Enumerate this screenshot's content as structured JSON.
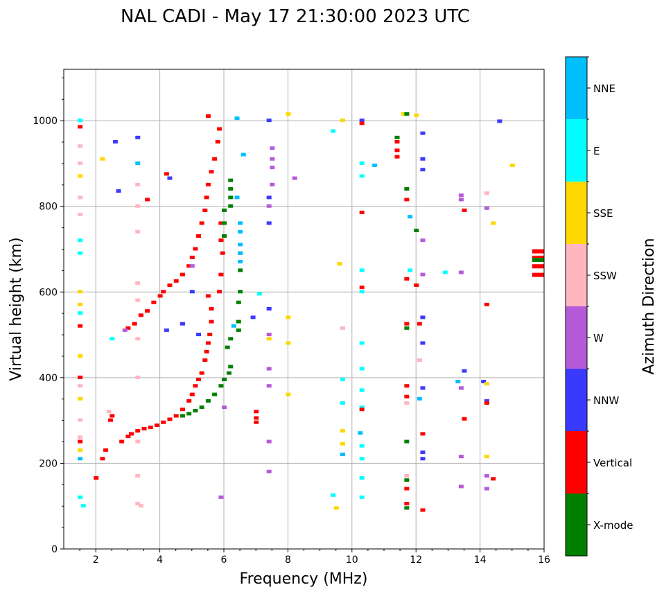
{
  "chart_data": {
    "type": "scatter",
    "title": "NAL CADI - May 17 21:30:00 2023 UTC",
    "xlabel": "Frequency (MHz)",
    "ylabel": "Virtual height (km)",
    "xlim": [
      1,
      16
    ],
    "ylim": [
      0,
      1120
    ],
    "xticks": [
      2,
      4,
      6,
      8,
      10,
      12,
      14,
      16
    ],
    "yticks": [
      0,
      200,
      400,
      600,
      800,
      1000
    ],
    "grid": true,
    "colorbar": {
      "label": "Azimuth Direction",
      "categories": [
        "X-mode",
        "Vertical",
        "NNW",
        "W",
        "SSW",
        "SSE",
        "E",
        "NNE"
      ],
      "colors": [
        "#008000",
        "#ff0000",
        "#3a3aff",
        "#b55ad8",
        "#ffb6c1",
        "#ffd700",
        "#00ffff",
        "#00bfff"
      ]
    },
    "points_format": [
      "frequency_mhz",
      "virtual_height_km",
      "category_index"
    ],
    "points": [
      [
        2.0,
        165,
        1
      ],
      [
        2.2,
        210,
        1
      ],
      [
        2.3,
        230,
        1
      ],
      [
        2.45,
        300,
        1
      ],
      [
        2.5,
        310,
        1
      ],
      [
        2.8,
        250,
        1
      ],
      [
        3.0,
        262,
        1
      ],
      [
        3.1,
        268,
        1
      ],
      [
        3.3,
        275,
        1
      ],
      [
        3.5,
        280,
        1
      ],
      [
        3.7,
        283,
        1
      ],
      [
        3.9,
        288,
        1
      ],
      [
        4.1,
        295,
        1
      ],
      [
        4.3,
        302,
        1
      ],
      [
        4.5,
        310,
        1
      ],
      [
        4.7,
        325,
        1
      ],
      [
        4.9,
        345,
        1
      ],
      [
        5.0,
        360,
        1
      ],
      [
        5.1,
        380,
        1
      ],
      [
        5.2,
        395,
        1
      ],
      [
        5.3,
        410,
        1
      ],
      [
        5.4,
        440,
        1
      ],
      [
        5.45,
        460,
        1
      ],
      [
        5.5,
        480,
        1
      ],
      [
        5.55,
        500,
        1
      ],
      [
        5.6,
        530,
        1
      ],
      [
        5.6,
        560,
        1
      ],
      [
        5.5,
        590,
        1
      ],
      [
        3.0,
        515,
        1
      ],
      [
        3.2,
        525,
        1
      ],
      [
        3.4,
        545,
        1
      ],
      [
        3.6,
        555,
        1
      ],
      [
        3.8,
        575,
        1
      ],
      [
        4.0,
        590,
        1
      ],
      [
        4.1,
        600,
        1
      ],
      [
        4.3,
        615,
        1
      ],
      [
        4.5,
        625,
        1
      ],
      [
        4.7,
        640,
        1
      ],
      [
        4.9,
        660,
        1
      ],
      [
        5.0,
        680,
        1
      ],
      [
        5.1,
        700,
        1
      ],
      [
        5.2,
        730,
        1
      ],
      [
        5.3,
        760,
        1
      ],
      [
        5.4,
        790,
        1
      ],
      [
        5.45,
        820,
        1
      ],
      [
        5.5,
        850,
        1
      ],
      [
        5.6,
        880,
        1
      ],
      [
        5.7,
        910,
        1
      ],
      [
        5.8,
        950,
        1
      ],
      [
        5.85,
        980,
        1
      ],
      [
        5.5,
        1010,
        1
      ],
      [
        5.95,
        690,
        1
      ],
      [
        5.9,
        720,
        1
      ],
      [
        5.9,
        760,
        1
      ],
      [
        5.9,
        640,
        1
      ],
      [
        5.85,
        600,
        1
      ],
      [
        4.2,
        875,
        1
      ],
      [
        3.6,
        815,
        1
      ],
      [
        4.7,
        310,
        0
      ],
      [
        4.9,
        315,
        0
      ],
      [
        5.1,
        322,
        0
      ],
      [
        5.3,
        330,
        0
      ],
      [
        5.5,
        345,
        0
      ],
      [
        5.7,
        360,
        0
      ],
      [
        5.9,
        380,
        0
      ],
      [
        6.0,
        395,
        0
      ],
      [
        6.15,
        410,
        0
      ],
      [
        6.2,
        425,
        0
      ],
      [
        6.1,
        470,
        0
      ],
      [
        6.2,
        490,
        0
      ],
      [
        6.45,
        510,
        0
      ],
      [
        6.45,
        530,
        0
      ],
      [
        6.45,
        575,
        0
      ],
      [
        6.5,
        600,
        0
      ],
      [
        6.2,
        840,
        0
      ],
      [
        6.2,
        860,
        0
      ],
      [
        6.2,
        820,
        0
      ],
      [
        6.0,
        790,
        0
      ],
      [
        6.0,
        760,
        0
      ],
      [
        6.0,
        730,
        0
      ],
      [
        6.2,
        800,
        0
      ],
      [
        6.5,
        650,
        0
      ],
      [
        6.5,
        690,
        0
      ],
      [
        6.4,
        1005,
        7
      ],
      [
        6.5,
        760,
        7
      ],
      [
        6.5,
        740,
        7
      ],
      [
        6.5,
        710,
        7
      ],
      [
        6.5,
        690,
        7
      ],
      [
        6.5,
        670,
        7
      ],
      [
        6.6,
        920,
        7
      ],
      [
        6.3,
        520,
        7
      ],
      [
        1.5,
        210,
        7
      ],
      [
        9.7,
        220,
        7
      ],
      [
        10.25,
        270,
        7
      ],
      [
        11.8,
        775,
        7
      ],
      [
        12.1,
        350,
        7
      ],
      [
        13.3,
        390,
        7
      ],
      [
        3.3,
        900,
        7
      ],
      [
        10.7,
        895,
        7
      ],
      [
        6.4,
        820,
        7
      ],
      [
        3.3,
        960,
        2
      ],
      [
        2.6,
        950,
        2
      ],
      [
        4.3,
        865,
        2
      ],
      [
        7.4,
        1000,
        2
      ],
      [
        7.4,
        820,
        2
      ],
      [
        7.4,
        760,
        2
      ],
      [
        12.2,
        970,
        2
      ],
      [
        12.2,
        910,
        2
      ],
      [
        12.2,
        885,
        2
      ],
      [
        10.3,
        1000,
        2
      ],
      [
        4.2,
        510,
        2
      ],
      [
        4.7,
        525,
        2
      ],
      [
        6.9,
        540,
        2
      ],
      [
        7.4,
        560,
        2
      ],
      [
        12.2,
        540,
        2
      ],
      [
        12.2,
        480,
        2
      ],
      [
        12.2,
        375,
        2
      ],
      [
        12.2,
        225,
        2
      ],
      [
        12.2,
        210,
        2
      ],
      [
        13.5,
        415,
        2
      ],
      [
        14.1,
        390,
        2
      ],
      [
        14.2,
        345,
        2
      ],
      [
        14.6,
        998,
        2
      ],
      [
        2.7,
        835,
        2
      ],
      [
        5.0,
        600,
        2
      ],
      [
        5.2,
        500,
        2
      ],
      [
        7.5,
        935,
        3
      ],
      [
        7.5,
        910,
        3
      ],
      [
        7.5,
        890,
        3
      ],
      [
        7.5,
        850,
        3
      ],
      [
        7.4,
        800,
        3
      ],
      [
        8.2,
        865,
        3
      ],
      [
        13.4,
        825,
        3
      ],
      [
        13.4,
        815,
        3
      ],
      [
        13.4,
        645,
        3
      ],
      [
        14.2,
        795,
        3
      ],
      [
        7.4,
        500,
        3
      ],
      [
        7.4,
        420,
        3
      ],
      [
        7.4,
        380,
        3
      ],
      [
        12.2,
        720,
        3
      ],
      [
        12.2,
        640,
        3
      ],
      [
        13.4,
        375,
        3
      ],
      [
        13.4,
        215,
        3
      ],
      [
        13.4,
        145,
        3
      ],
      [
        14.2,
        170,
        3
      ],
      [
        14.2,
        140,
        3
      ],
      [
        7.4,
        250,
        3
      ],
      [
        7.4,
        180,
        3
      ],
      [
        5.0,
        660,
        3
      ],
      [
        6.0,
        330,
        3
      ],
      [
        5.9,
        120,
        3
      ],
      [
        2.9,
        510,
        3
      ],
      [
        1.5,
        940,
        4
      ],
      [
        1.5,
        900,
        4
      ],
      [
        1.5,
        820,
        4
      ],
      [
        1.5,
        780,
        4
      ],
      [
        3.3,
        850,
        4
      ],
      [
        3.3,
        800,
        4
      ],
      [
        3.3,
        740,
        4
      ],
      [
        3.3,
        620,
        4
      ],
      [
        3.3,
        580,
        4
      ],
      [
        3.3,
        490,
        4
      ],
      [
        3.3,
        400,
        4
      ],
      [
        3.3,
        250,
        4
      ],
      [
        3.3,
        170,
        4
      ],
      [
        3.3,
        105,
        4
      ],
      [
        1.5,
        380,
        4
      ],
      [
        1.5,
        300,
        4
      ],
      [
        1.5,
        260,
        4
      ],
      [
        9.7,
        515,
        4
      ],
      [
        11.7,
        340,
        4
      ],
      [
        12.1,
        440,
        4
      ],
      [
        14.2,
        830,
        4
      ],
      [
        11.7,
        170,
        4
      ],
      [
        2.4,
        320,
        4
      ],
      [
        3.4,
        100,
        4
      ],
      [
        1.5,
        600,
        5
      ],
      [
        1.5,
        570,
        5
      ],
      [
        1.5,
        450,
        5
      ],
      [
        1.5,
        350,
        5
      ],
      [
        1.5,
        230,
        5
      ],
      [
        1.5,
        870,
        5
      ],
      [
        2.2,
        910,
        5
      ],
      [
        8.0,
        1015,
        5
      ],
      [
        9.7,
        1000,
        5
      ],
      [
        9.6,
        665,
        5
      ],
      [
        8.0,
        540,
        5
      ],
      [
        8.0,
        480,
        5
      ],
      [
        8.0,
        360,
        5
      ],
      [
        9.7,
        275,
        5
      ],
      [
        9.7,
        245,
        5
      ],
      [
        9.5,
        95,
        5
      ],
      [
        12.0,
        1012,
        5
      ],
      [
        15.0,
        895,
        5
      ],
      [
        14.4,
        760,
        5
      ],
      [
        14.2,
        215,
        5
      ],
      [
        14.2,
        385,
        5
      ],
      [
        11.6,
        1015,
        5
      ],
      [
        7.4,
        490,
        5
      ],
      [
        1.5,
        1000,
        6
      ],
      [
        1.5,
        720,
        6
      ],
      [
        1.5,
        690,
        6
      ],
      [
        1.5,
        550,
        6
      ],
      [
        1.5,
        120,
        6
      ],
      [
        1.6,
        100,
        6
      ],
      [
        2.5,
        490,
        6
      ],
      [
        10.3,
        900,
        6
      ],
      [
        10.3,
        870,
        6
      ],
      [
        10.3,
        650,
        6
      ],
      [
        10.3,
        600,
        6
      ],
      [
        10.3,
        480,
        6
      ],
      [
        10.3,
        420,
        6
      ],
      [
        10.3,
        370,
        6
      ],
      [
        10.3,
        330,
        6
      ],
      [
        10.3,
        240,
        6
      ],
      [
        10.3,
        210,
        6
      ],
      [
        10.3,
        165,
        6
      ],
      [
        10.3,
        120,
        6
      ],
      [
        9.7,
        395,
        6
      ],
      [
        9.7,
        340,
        6
      ],
      [
        9.4,
        975,
        6
      ],
      [
        12.9,
        645,
        6
      ],
      [
        7.1,
        595,
        6
      ],
      [
        9.4,
        125,
        6
      ],
      [
        11.8,
        650,
        6
      ],
      [
        1.5,
        985,
        1
      ],
      [
        1.5,
        400,
        1
      ],
      [
        1.5,
        520,
        1
      ],
      [
        1.5,
        250,
        1
      ],
      [
        10.3,
        993,
        1
      ],
      [
        10.3,
        785,
        1
      ],
      [
        10.3,
        610,
        1
      ],
      [
        10.3,
        325,
        1
      ],
      [
        11.4,
        950,
        1
      ],
      [
        11.4,
        930,
        1
      ],
      [
        11.4,
        915,
        1
      ],
      [
        11.7,
        815,
        1
      ],
      [
        11.7,
        630,
        1
      ],
      [
        11.7,
        525,
        1
      ],
      [
        11.7,
        380,
        1
      ],
      [
        11.7,
        355,
        1
      ],
      [
        12.0,
        615,
        1
      ],
      [
        12.1,
        525,
        1
      ],
      [
        12.2,
        268,
        1
      ],
      [
        12.2,
        90,
        1
      ],
      [
        13.5,
        790,
        1
      ],
      [
        13.5,
        303,
        1
      ],
      [
        14.2,
        570,
        1
      ],
      [
        14.2,
        340,
        1
      ],
      [
        7.0,
        320,
        1
      ],
      [
        7.0,
        305,
        1
      ],
      [
        7.0,
        295,
        1
      ],
      [
        15.8,
        695,
        1
      ],
      [
        15.8,
        680,
        1
      ],
      [
        15.8,
        660,
        1
      ],
      [
        15.8,
        640,
        1
      ],
      [
        11.7,
        105,
        1
      ],
      [
        11.7,
        140,
        1
      ],
      [
        14.4,
        163,
        1
      ],
      [
        11.7,
        1015,
        0
      ],
      [
        11.7,
        840,
        0
      ],
      [
        12.0,
        743,
        0
      ],
      [
        11.7,
        515,
        0
      ],
      [
        11.7,
        250,
        0
      ],
      [
        11.7,
        160,
        0
      ],
      [
        11.7,
        95,
        0
      ],
      [
        15.8,
        675,
        0
      ],
      [
        11.4,
        960,
        0
      ]
    ]
  }
}
